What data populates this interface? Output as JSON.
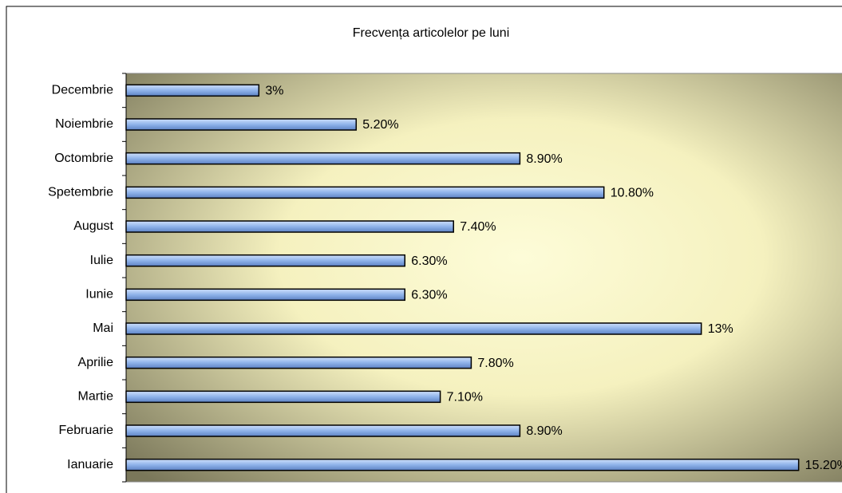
{
  "chart_data": {
    "type": "hbar",
    "title": "Frecvența articolelor pe luni",
    "categories": [
      "Ianuarie",
      "Februarie",
      "Martie",
      "Aprilie",
      "Mai",
      "Iunie",
      "Iulie",
      "August",
      "Spetembrie",
      "Octombrie",
      "Noiembrie",
      "Decembrie"
    ],
    "values": [
      15.2,
      8.9,
      7.1,
      7.8,
      13,
      6.3,
      6.3,
      7.4,
      10.8,
      8.9,
      5.2,
      3
    ],
    "value_labels": [
      "15.20%",
      "8.90%",
      "7.10%",
      "7.80%",
      "13%",
      "6.30%",
      "6.30%",
      "7.40%",
      "10.80%",
      "8.90%",
      "5.20%",
      "3%"
    ],
    "color": "#99bbee",
    "xlim": [
      0,
      16
    ]
  }
}
